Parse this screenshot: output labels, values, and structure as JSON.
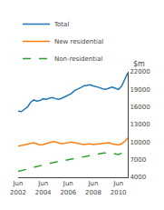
{
  "chart_data": {
    "type": "line",
    "categories": [
      "Jun\n2002",
      null,
      null,
      null,
      null,
      null,
      null,
      null,
      "Jun\n2004",
      null,
      null,
      null,
      null,
      null,
      null,
      null,
      "Jun\n2006",
      null,
      null,
      null,
      null,
      null,
      null,
      null,
      "Jun\n2008",
      null,
      null,
      null,
      null,
      null,
      null,
      null,
      "Jun\n2010",
      null,
      null,
      null
    ],
    "series": [
      {
        "name": "Total",
        "line_style": "solid",
        "values": [
          15300,
          15200,
          15600,
          16000,
          16800,
          17200,
          17000,
          17100,
          17400,
          17300,
          17500,
          17600,
          17400,
          17300,
          17500,
          17800,
          18000,
          18300,
          18800,
          19000,
          19300,
          19600,
          19700,
          19800,
          19600,
          19500,
          19300,
          19100,
          19000,
          19200,
          19400,
          19200,
          19000,
          19500,
          20800,
          21800
        ]
      },
      {
        "name": "New residential",
        "line_style": "solid",
        "values": [
          9300,
          9400,
          9500,
          9600,
          9800,
          9900,
          9700,
          9500,
          9600,
          9800,
          9900,
          10100,
          10000,
          9800,
          9700,
          9800,
          9900,
          10000,
          9900,
          9800,
          9700,
          9600,
          9650,
          9700,
          9600,
          9650,
          9700,
          9750,
          9800,
          9900,
          9700,
          9600,
          9500,
          9700,
          10100,
          10700
        ]
      },
      {
        "name": "Non-residential",
        "line_style": "dashed",
        "values": [
          5000,
          5100,
          5250,
          5400,
          5550,
          5700,
          5850,
          6000,
          6100,
          6200,
          6350,
          6500,
          6600,
          6700,
          6800,
          6900,
          7000,
          7100,
          7200,
          7350,
          7500,
          7600,
          7700,
          7800,
          7900,
          8000,
          8050,
          8100,
          8150,
          8200,
          8100,
          8000,
          7900,
          8100,
          8400,
          8700
        ]
      }
    ],
    "ylabel": "$m",
    "ylim": [
      4000,
      22000
    ],
    "yticks": [
      4000,
      7000,
      10000,
      13000,
      16000,
      19000,
      22000
    ],
    "grid": false,
    "legend": "upper left"
  }
}
